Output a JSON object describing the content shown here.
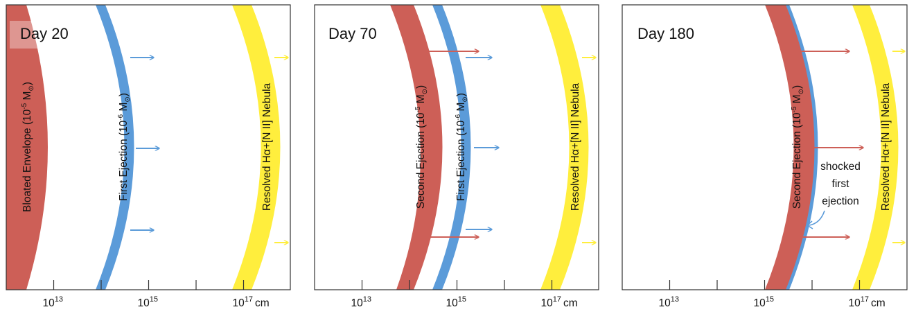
{
  "colors": {
    "red": "#cd5f57",
    "blue": "#5b9bd9",
    "yellow": "#ffee3d",
    "frame": "#333333"
  },
  "axis": {
    "unit": "cm",
    "ticks": [
      {
        "base": "10",
        "exp": "13"
      },
      {
        "base": "10",
        "exp": "15"
      },
      {
        "base": "10",
        "exp": "17"
      }
    ]
  },
  "panels": [
    {
      "day_label": "Day 20",
      "shells": [
        {
          "label": "Bloated Envelope (10",
          "exp": "-5",
          "unit": " M",
          "sub": "⊙",
          "tail": ")"
        },
        {
          "label": "First Ejection (10",
          "exp": "-6",
          "unit": " M",
          "sub": "⊙",
          "tail": ")"
        },
        {
          "label": "Resolved Hα+[N II] Nebula"
        }
      ]
    },
    {
      "day_label": "Day 70",
      "shells": [
        {
          "label": "Second Ejection (10",
          "exp": "-5",
          "unit": " M",
          "sub": "⊙",
          "tail": ")"
        },
        {
          "label": "First Ejection (10",
          "exp": "-6",
          "unit": " M",
          "sub": "⊙",
          "tail": ")"
        },
        {
          "label": "Resolved Hα+[N II] Nebula"
        }
      ]
    },
    {
      "day_label": "Day 180",
      "shells": [
        {
          "label": "Second Ejection (10",
          "exp": "-5",
          "unit": " M",
          "sub": "⊙",
          "tail": ")"
        },
        {
          "label": "Resolved Hα+[N II] Nebula"
        }
      ],
      "annotation": [
        "shocked",
        "first",
        "ejection"
      ]
    }
  ]
}
